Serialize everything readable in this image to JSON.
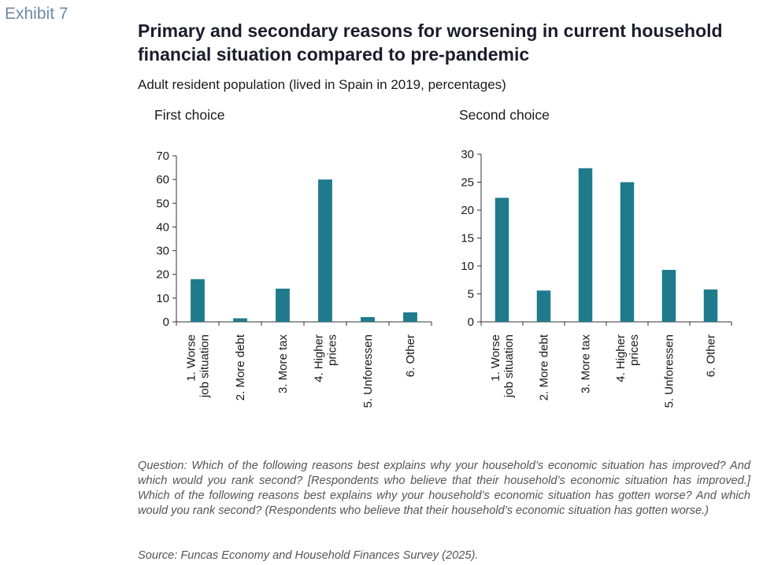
{
  "header": {
    "exhibit": "Exhibit 7",
    "title": "Primary and secondary reasons for worsening in current household financial situation compared to pre-pandemic",
    "subtitle": "Adult resident population (lived in Spain in 2019, percentages)"
  },
  "colors": {
    "bar": "#1f7a8c",
    "axis": "#333333"
  },
  "chart_data": [
    {
      "type": "bar",
      "title": "First choice",
      "categories": [
        "1. Worse job situation",
        "2. More debt",
        "3. More tax",
        "4. Higher prices",
        "5. Unforessen",
        "6. Other"
      ],
      "category_lines": [
        [
          "1. Worse",
          "job situation"
        ],
        [
          "2. More debt"
        ],
        [
          "3. More tax"
        ],
        [
          "4. Higher",
          "prices"
        ],
        [
          "5. Unforessen"
        ],
        [
          "6. Other"
        ]
      ],
      "values": [
        18,
        1.5,
        14,
        60,
        2,
        4
      ],
      "ylim": [
        0,
        70
      ],
      "yticks": [
        0,
        10,
        20,
        30,
        40,
        50,
        60,
        70
      ],
      "grid": false
    },
    {
      "type": "bar",
      "title": "Second choice",
      "categories": [
        "1. Worse job situation",
        "2. More debt",
        "3. More tax",
        "4. Higher prices",
        "5. Unforessen",
        "6. Other"
      ],
      "category_lines": [
        [
          "1. Worse",
          "job situation"
        ],
        [
          "2. More debt"
        ],
        [
          "3. More tax"
        ],
        [
          "4. Higher",
          "prices"
        ],
        [
          "5. Unforessen"
        ],
        [
          "6. Other"
        ]
      ],
      "values": [
        22.2,
        5.6,
        27.5,
        25,
        9.3,
        5.8
      ],
      "ylim": [
        0,
        30
      ],
      "yticks": [
        0,
        5,
        10,
        15,
        20,
        25,
        30
      ],
      "grid": false
    }
  ],
  "footer": {
    "question": "Question: Which of the following reasons best explains why your household’s economic situation has improved? And which would you rank second? [Respondents who believe that their household’s economic situation has improved.] Which of the following reasons best explains why your household’s economic situation has gotten worse? And which would you rank second? (Respondents who believe that their household’s economic situation has gotten worse.)",
    "source": "Source: Funcas Economy and Household Finances Survey (2025)."
  }
}
